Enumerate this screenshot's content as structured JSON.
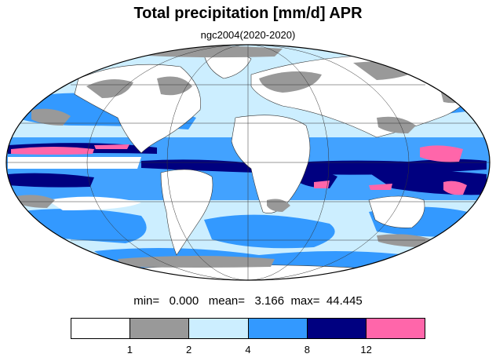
{
  "title": "Total precipitation [mm/d] APR",
  "subtitle": "ngc2004(2020-2020)",
  "stats": {
    "min_label": "min=",
    "min_value": "0.000",
    "mean_label": "mean=",
    "mean_value": "3.166",
    "max_label": "max=",
    "max_value": "44.445"
  },
  "colorbar": {
    "colors": [
      "#ffffff",
      "#999999",
      "#cceeff",
      "#3399ff",
      "#000080",
      "#ff66aa"
    ],
    "tick_labels": [
      "1",
      "2",
      "4",
      "8",
      "12"
    ]
  }
}
